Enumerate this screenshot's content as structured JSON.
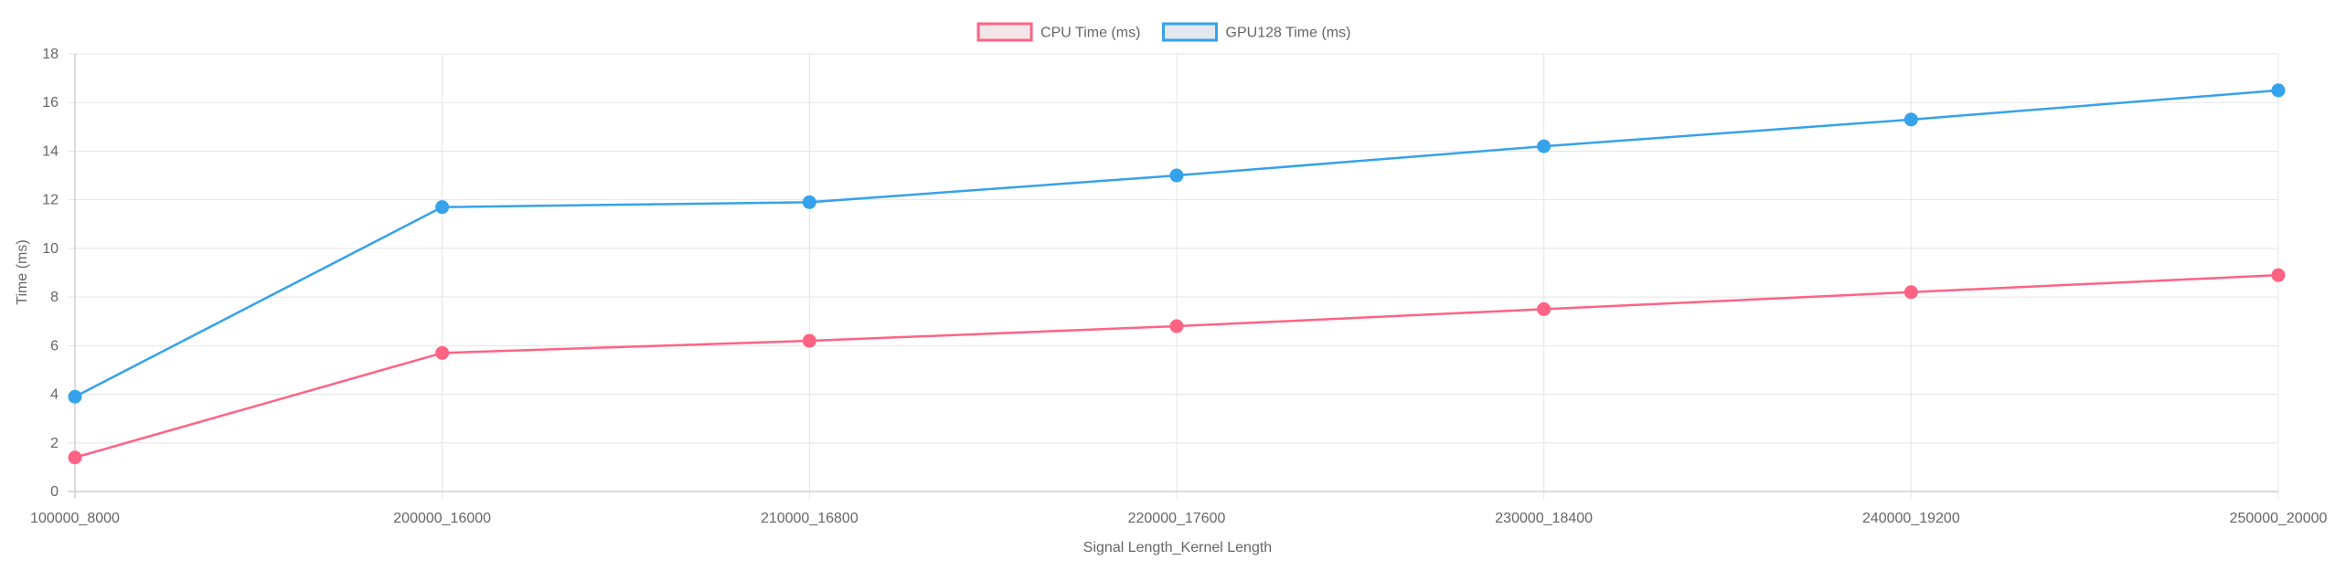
{
  "chart_data": {
    "type": "line",
    "title": "",
    "xlabel": "Signal Length_Kernel Length",
    "ylabel": "Time (ms)",
    "categories": [
      "100000_8000",
      "200000_16000",
      "210000_16800",
      "220000_17600",
      "230000_18400",
      "240000_19200",
      "250000_20000"
    ],
    "ylim": [
      0,
      18
    ],
    "yticks": [
      0,
      2,
      4,
      6,
      8,
      10,
      12,
      14,
      16,
      18
    ],
    "grid": true,
    "legend_position": "top-center",
    "series": [
      {
        "name": "CPU Time (ms)",
        "color": "#ff6384",
        "fill": "#f3e6e9",
        "values": [
          1.4,
          5.7,
          6.2,
          6.8,
          7.5,
          8.2,
          8.9
        ]
      },
      {
        "name": "GPU128 Time (ms)",
        "color": "#36a2eb",
        "fill": "#e3e9ee",
        "values": [
          3.9,
          11.7,
          11.9,
          13.0,
          14.2,
          15.3,
          16.5
        ]
      }
    ]
  }
}
